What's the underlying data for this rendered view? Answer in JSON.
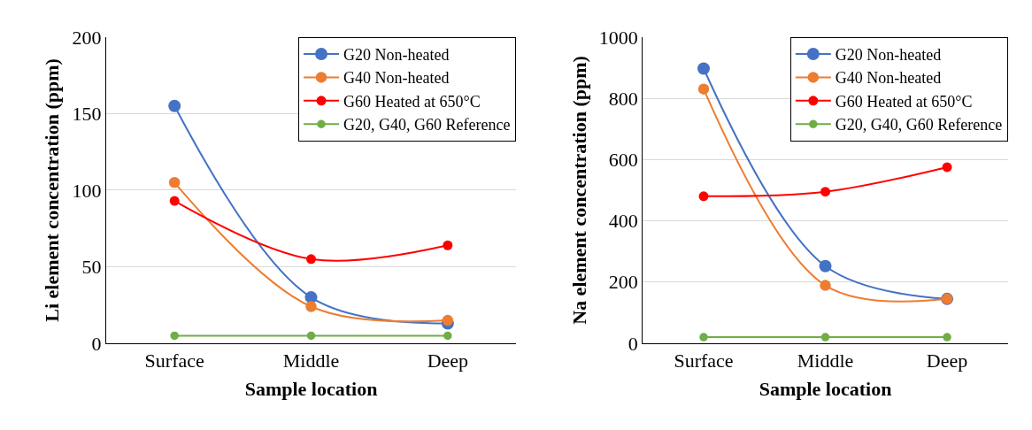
{
  "chart_data": [
    {
      "type": "line",
      "xlabel": "Sample location",
      "ylabel": "Li element concentration (ppm)",
      "categories": [
        "Surface",
        "Middle",
        "Deep"
      ],
      "ylim": [
        0,
        200
      ],
      "yticks": [
        0,
        50,
        100,
        150,
        200
      ],
      "grid": "y",
      "legend": "top right",
      "marker": "circle",
      "line_style": "solid",
      "series": [
        {
          "name": "G20 Non-heated",
          "color": "#4472c4",
          "values": [
            155,
            30,
            13
          ]
        },
        {
          "name": "G40 Non-heated",
          "color": "#ed7d31",
          "values": [
            105,
            24,
            15
          ]
        },
        {
          "name": "G60 Heated at 650°C",
          "color": "#ff0000",
          "values": [
            93,
            55,
            64
          ]
        },
        {
          "name": "G20, G40, G60 Reference",
          "color": "#70ad47",
          "values": [
            5,
            5,
            5
          ]
        }
      ]
    },
    {
      "type": "line",
      "xlabel": "Sample location",
      "ylabel": "Na element concentration (ppm)",
      "categories": [
        "Surface",
        "Middle",
        "Deep"
      ],
      "ylim": [
        0,
        1000
      ],
      "yticks": [
        0,
        200,
        400,
        600,
        800,
        1000
      ],
      "grid": "y",
      "legend": "top right",
      "marker": "circle",
      "line_style": "solid",
      "series": [
        {
          "name": "G20 Non-heated",
          "color": "#4472c4",
          "values": [
            897,
            252,
            145
          ]
        },
        {
          "name": "G40 Non-heated",
          "color": "#ed7d31",
          "values": [
            830,
            189,
            145
          ]
        },
        {
          "name": "G60 Heated at 650°C",
          "color": "#ff0000",
          "values": [
            480,
            495,
            575
          ]
        },
        {
          "name": "G20, G40, G60 Reference",
          "color": "#70ad47",
          "values": [
            20,
            20,
            20
          ]
        }
      ]
    }
  ]
}
